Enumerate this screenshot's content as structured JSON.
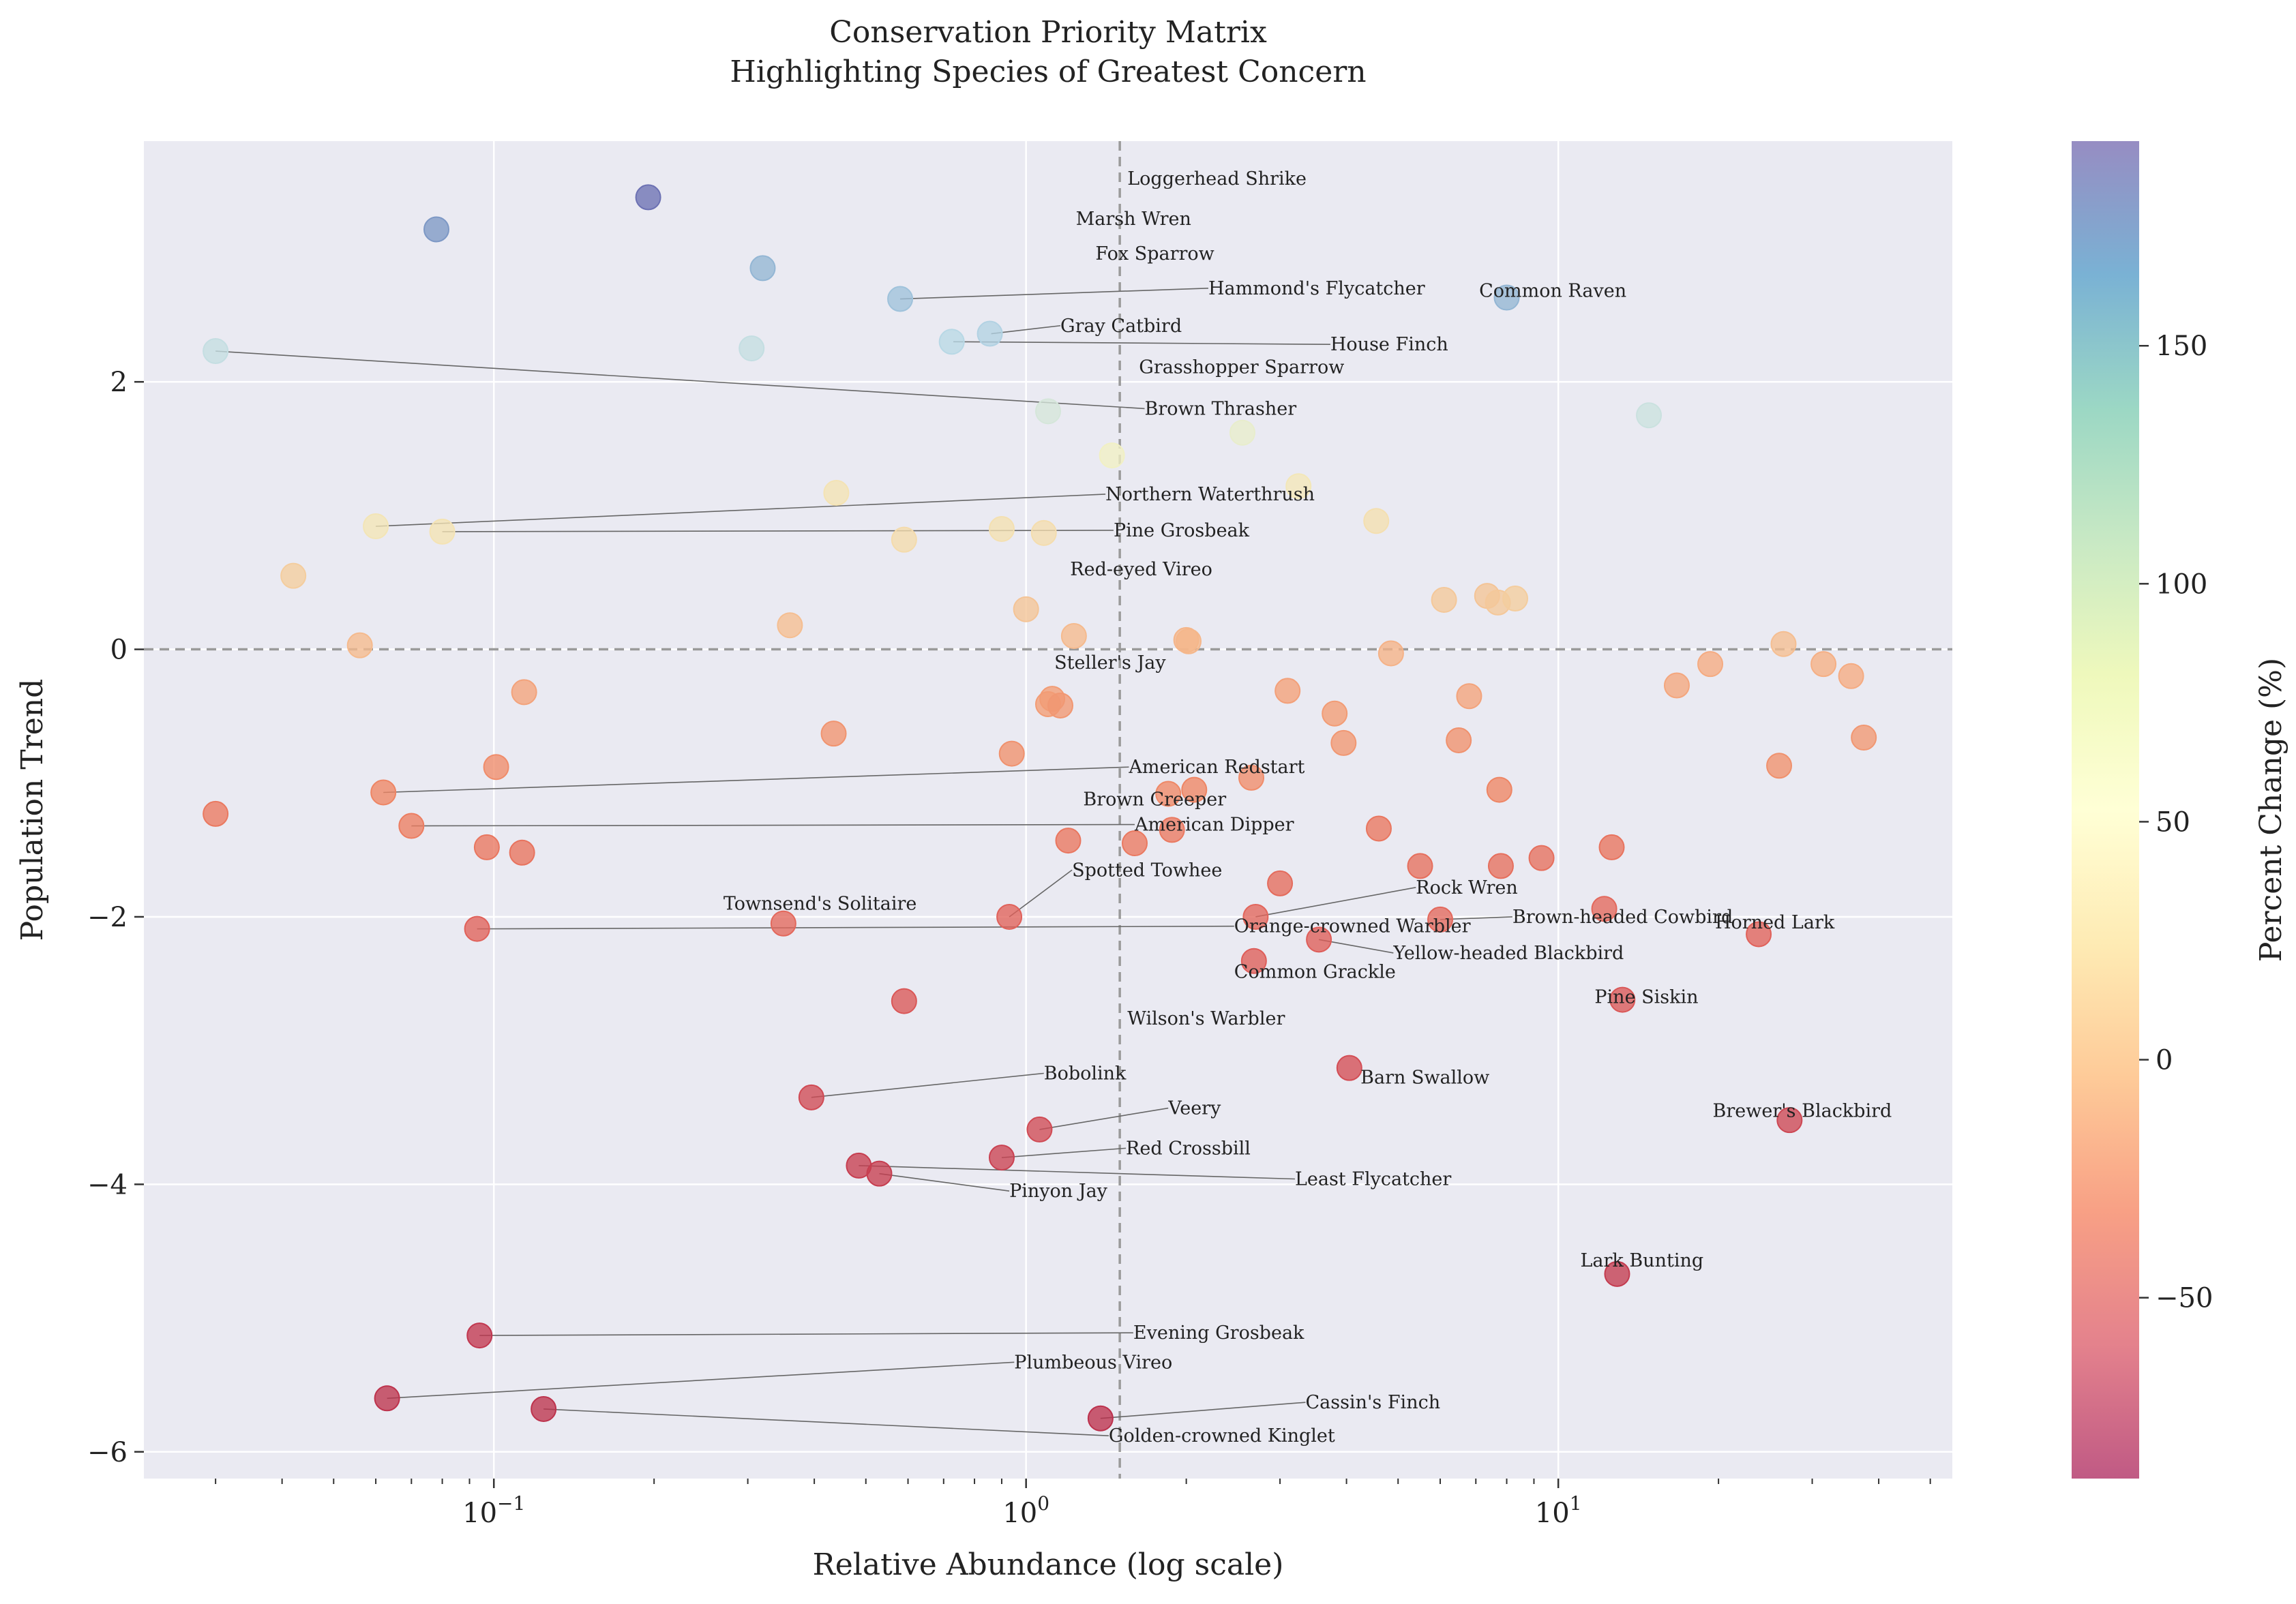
{
  "chart_data": {
    "type": "scatter",
    "title_line1": "Conservation Priority Matrix",
    "title_line2": "Highlighting Species of Greatest Concern",
    "xlabel": "Relative Abundance (log scale)",
    "ylabel": "Population Trend",
    "colorbar_label": "Percent Change (%)",
    "x_scale": "log",
    "xlim": [
      0.022,
      55
    ],
    "ylim": [
      -6.2,
      3.8
    ],
    "x_ticks": [
      {
        "value": 0.1,
        "base": "10",
        "exp": "−1"
      },
      {
        "value": 1,
        "base": "10",
        "exp": "0"
      },
      {
        "value": 10,
        "base": "10",
        "exp": "1"
      }
    ],
    "y_ticks": [
      {
        "value": 2,
        "label": "2"
      },
      {
        "value": 0,
        "label": "0"
      },
      {
        "value": -2,
        "label": "−2"
      },
      {
        "value": -4,
        "label": "−4"
      },
      {
        "value": -6,
        "label": "−6"
      }
    ],
    "colorbar_range": [
      -88,
      193
    ],
    "colorbar_ticks": [
      {
        "value": 150,
        "label": "150"
      },
      {
        "value": 100,
        "label": "100"
      },
      {
        "value": 50,
        "label": "50"
      },
      {
        "value": 0,
        "label": "0"
      },
      {
        "value": -50,
        "label": "−50"
      }
    ],
    "colormap": [
      "#9e0142",
      "#d53e4f",
      "#f46d43",
      "#fdae61",
      "#fee08b",
      "#ffffbf",
      "#e6f598",
      "#abdda4",
      "#66c2a5",
      "#3288bd",
      "#5e4fa2"
    ],
    "colormap_display": [
      "#b92e4c",
      "#dd5a58",
      "#ee8262",
      "#f5ad82",
      "#f4d6a6",
      "#f3f1c2",
      "#dae9d8",
      "#bad9e6",
      "#97bbd7",
      "#7891c1",
      "#6b6db1"
    ],
    "grid": true,
    "threshold_x": 1.5,
    "threshold_y": 0,
    "points": [
      {
        "x": 0.195,
        "y": 3.38,
        "c": 190
      },
      {
        "x": 0.078,
        "y": 3.14,
        "c": 160
      },
      {
        "x": 0.32,
        "y": 2.85,
        "c": 140
      },
      {
        "x": 0.58,
        "y": 2.62,
        "c": 130
      },
      {
        "x": 8.0,
        "y": 2.63,
        "c": 140
      },
      {
        "x": 0.03,
        "y": 2.23,
        "c": 100
      },
      {
        "x": 0.305,
        "y": 2.25,
        "c": 100
      },
      {
        "x": 0.725,
        "y": 2.3,
        "c": 110
      },
      {
        "x": 0.855,
        "y": 2.36,
        "c": 115
      },
      {
        "x": 1.1,
        "y": 1.78,
        "c": 85
      },
      {
        "x": 2.55,
        "y": 1.62,
        "c": 65
      },
      {
        "x": 14.8,
        "y": 1.75,
        "c": 95
      },
      {
        "x": 1.45,
        "y": 1.45,
        "c": 55
      },
      {
        "x": 3.25,
        "y": 1.22,
        "c": 42
      },
      {
        "x": 0.44,
        "y": 1.17,
        "c": 38
      },
      {
        "x": 0.06,
        "y": 0.92,
        "c": 40
      },
      {
        "x": 0.08,
        "y": 0.88,
        "c": 38
      },
      {
        "x": 0.9,
        "y": 0.9,
        "c": 35
      },
      {
        "x": 1.08,
        "y": 0.87,
        "c": 32
      },
      {
        "x": 0.59,
        "y": 0.82,
        "c": 30
      },
      {
        "x": 4.55,
        "y": 0.96,
        "c": 34
      },
      {
        "x": 0.042,
        "y": 0.55,
        "c": 18
      },
      {
        "x": 6.1,
        "y": 0.37,
        "c": 15
      },
      {
        "x": 7.35,
        "y": 0.4,
        "c": 12
      },
      {
        "x": 7.7,
        "y": 0.35,
        "c": 15
      },
      {
        "x": 8.3,
        "y": 0.38,
        "c": 18
      },
      {
        "x": 1.0,
        "y": 0.3,
        "c": 12
      },
      {
        "x": 0.36,
        "y": 0.18,
        "c": 8
      },
      {
        "x": 1.23,
        "y": 0.1,
        "c": 5
      },
      {
        "x": 2.0,
        "y": 0.07,
        "c": 2
      },
      {
        "x": 2.02,
        "y": 0.06,
        "c": 3
      },
      {
        "x": 0.056,
        "y": 0.03,
        "c": 5
      },
      {
        "x": 26.5,
        "y": 0.04,
        "c": 8
      },
      {
        "x": 4.85,
        "y": -0.03,
        "c": 0
      },
      {
        "x": 31.5,
        "y": -0.11,
        "c": -2
      },
      {
        "x": 19.3,
        "y": -0.11,
        "c": -5
      },
      {
        "x": 35.5,
        "y": -0.2,
        "c": -5
      },
      {
        "x": 16.7,
        "y": -0.27,
        "c": -8
      },
      {
        "x": 0.114,
        "y": -0.32,
        "c": -10
      },
      {
        "x": 3.1,
        "y": -0.31,
        "c": -12
      },
      {
        "x": 6.8,
        "y": -0.35,
        "c": -10
      },
      {
        "x": 1.12,
        "y": -0.37,
        "c": -15
      },
      {
        "x": 1.1,
        "y": -0.41,
        "c": -15
      },
      {
        "x": 1.16,
        "y": -0.42,
        "c": -18
      },
      {
        "x": 3.8,
        "y": -0.48,
        "c": -15
      },
      {
        "x": 0.435,
        "y": -0.63,
        "c": -20
      },
      {
        "x": 3.95,
        "y": -0.7,
        "c": -18
      },
      {
        "x": 6.5,
        "y": -0.68,
        "c": -22
      },
      {
        "x": 37.5,
        "y": -0.66,
        "c": -18
      },
      {
        "x": 0.94,
        "y": -0.78,
        "c": -22
      },
      {
        "x": 26.0,
        "y": -0.87,
        "c": -22
      },
      {
        "x": 0.101,
        "y": -0.88,
        "c": -25
      },
      {
        "x": 2.65,
        "y": -0.96,
        "c": -25
      },
      {
        "x": 0.062,
        "y": -1.07,
        "c": -30
      },
      {
        "x": 1.85,
        "y": -1.08,
        "c": -28
      },
      {
        "x": 2.07,
        "y": -1.05,
        "c": -30
      },
      {
        "x": 7.75,
        "y": -1.05,
        "c": -30
      },
      {
        "x": 0.03,
        "y": -1.23,
        "c": -38
      },
      {
        "x": 0.07,
        "y": -1.32,
        "c": -35
      },
      {
        "x": 1.88,
        "y": -1.35,
        "c": -38
      },
      {
        "x": 4.6,
        "y": -1.34,
        "c": -40
      },
      {
        "x": 1.2,
        "y": -1.43,
        "c": -40
      },
      {
        "x": 1.6,
        "y": -1.45,
        "c": -38
      },
      {
        "x": 0.097,
        "y": -1.48,
        "c": -40
      },
      {
        "x": 12.6,
        "y": -1.48,
        "c": -42
      },
      {
        "x": 0.113,
        "y": -1.52,
        "c": -42
      },
      {
        "x": 9.3,
        "y": -1.56,
        "c": -45
      },
      {
        "x": 5.5,
        "y": -1.62,
        "c": -45
      },
      {
        "x": 7.8,
        "y": -1.62,
        "c": -45
      },
      {
        "x": 3.0,
        "y": -1.75,
        "c": -48
      },
      {
        "x": 12.2,
        "y": -1.94,
        "c": -50
      },
      {
        "x": 0.93,
        "y": -2.0,
        "c": -55
      },
      {
        "x": 2.7,
        "y": -2.0,
        "c": -52
      },
      {
        "x": 6.0,
        "y": -2.02,
        "c": -50
      },
      {
        "x": 0.35,
        "y": -2.05,
        "c": -50
      },
      {
        "x": 0.093,
        "y": -2.09,
        "c": -55
      },
      {
        "x": 23.8,
        "y": -2.13,
        "c": -55
      },
      {
        "x": 3.55,
        "y": -2.17,
        "c": -58
      },
      {
        "x": 2.68,
        "y": -2.33,
        "c": -58
      },
      {
        "x": 13.2,
        "y": -2.62,
        "c": -62
      },
      {
        "x": 0.59,
        "y": -2.63,
        "c": -62
      },
      {
        "x": 4.05,
        "y": -3.13,
        "c": -68
      },
      {
        "x": 0.395,
        "y": -3.35,
        "c": -70
      },
      {
        "x": 27.2,
        "y": -3.52,
        "c": -72
      },
      {
        "x": 1.06,
        "y": -3.59,
        "c": -70
      },
      {
        "x": 0.9,
        "y": -3.8,
        "c": -75
      },
      {
        "x": 0.485,
        "y": -3.86,
        "c": -78
      },
      {
        "x": 0.53,
        "y": -3.92,
        "c": -78
      },
      {
        "x": 12.9,
        "y": -4.67,
        "c": -80
      },
      {
        "x": 0.094,
        "y": -5.13,
        "c": -82
      },
      {
        "x": 0.063,
        "y": -5.6,
        "c": -85
      },
      {
        "x": 0.124,
        "y": -5.68,
        "c": -85
      },
      {
        "x": 1.38,
        "y": -5.75,
        "c": -86
      }
    ],
    "annotations": [
      {
        "text": "Loggerhead Shrike",
        "x": 1.55,
        "y": 3.52
      },
      {
        "text": "Marsh Wren",
        "x": 1.24,
        "y": 3.22
      },
      {
        "text": "Fox Sparrow",
        "x": 1.35,
        "y": 2.96
      },
      {
        "text": "Hammond's Flycatcher",
        "x": 2.2,
        "y": 2.7,
        "px": 0.58,
        "py": 2.62
      },
      {
        "text": "Common Raven",
        "x": 7.1,
        "y": 2.68
      },
      {
        "text": "Gray Catbird",
        "x": 1.16,
        "y": 2.42,
        "px": 0.86,
        "py": 2.36
      },
      {
        "text": "House Finch",
        "x": 3.73,
        "y": 2.28,
        "px": 0.73,
        "py": 2.3
      },
      {
        "text": "Grasshopper Sparrow",
        "x": 1.63,
        "y": 2.11
      },
      {
        "text": "Brown Thrasher",
        "x": 1.67,
        "y": 1.8,
        "px": 0.03,
        "py": 2.23
      },
      {
        "text": "Northern Waterthrush",
        "x": 1.41,
        "y": 1.16,
        "px": 0.06,
        "py": 0.92
      },
      {
        "text": "Pine Grosbeak",
        "x": 1.46,
        "y": 0.89,
        "px": 0.08,
        "py": 0.88
      },
      {
        "text": "Red-eyed Vireo",
        "x": 1.21,
        "y": 0.6
      },
      {
        "text": "Steller's Jay",
        "x": 1.13,
        "y": -0.1
      },
      {
        "text": "American Redstart",
        "x": 1.56,
        "y": -0.88,
        "px": 0.062,
        "py": -1.07
      },
      {
        "text": "Brown Creeper",
        "x": 1.28,
        "y": -1.12
      },
      {
        "text": "American Dipper",
        "x": 1.6,
        "y": -1.31,
        "px": 0.07,
        "py": -1.32
      },
      {
        "text": "Spotted Towhee",
        "x": 1.22,
        "y": -1.65,
        "px": 0.93,
        "py": -2.0
      },
      {
        "text": "Rock Wren",
        "x": 5.4,
        "y": -1.78,
        "px": 2.7,
        "py": -2.0
      },
      {
        "text": "Townsend's Solitaire",
        "x": 0.27,
        "y": -1.9
      },
      {
        "text": "Orange-crowned Warbler",
        "x": 2.46,
        "y": -2.07,
        "px": 0.093,
        "py": -2.09
      },
      {
        "text": "Brown-headed Cowbird",
        "x": 8.2,
        "y": -2.0,
        "px": 6.0,
        "py": -2.02
      },
      {
        "text": "Horned Lark",
        "x": 19.7,
        "y": -2.04
      },
      {
        "text": "Yellow-headed Blackbird",
        "x": 4.9,
        "y": -2.27,
        "px": 3.55,
        "py": -2.17
      },
      {
        "text": "Common Grackle",
        "x": 2.46,
        "y": -2.41
      },
      {
        "text": "Pine Siskin",
        "x": 11.7,
        "y": -2.6
      },
      {
        "text": "Wilson's Warbler",
        "x": 1.55,
        "y": -2.76
      },
      {
        "text": "Bobolink",
        "x": 1.08,
        "y": -3.17,
        "px": 0.395,
        "py": -3.35
      },
      {
        "text": "Barn Swallow",
        "x": 4.25,
        "y": -3.2
      },
      {
        "text": "Veery",
        "x": 1.85,
        "y": -3.43,
        "px": 1.06,
        "py": -3.59
      },
      {
        "text": "Brewer's Blackbird",
        "x": 19.5,
        "y": -3.45
      },
      {
        "text": "Red Crossbill",
        "x": 1.54,
        "y": -3.73,
        "px": 0.9,
        "py": -3.8
      },
      {
        "text": "Least Flycatcher",
        "x": 3.2,
        "y": -3.96,
        "px": 0.485,
        "py": -3.86
      },
      {
        "text": "Pinyon Jay",
        "x": 0.93,
        "y": -4.05,
        "px": 0.53,
        "py": -3.92
      },
      {
        "text": "Lark Bunting",
        "x": 11.0,
        "y": -4.57
      },
      {
        "text": "Evening Grosbeak",
        "x": 1.59,
        "y": -5.11,
        "px": 0.094,
        "py": -5.13
      },
      {
        "text": "Plumbeous Vireo",
        "x": 0.95,
        "y": -5.33,
        "px": 0.063,
        "py": -5.6
      },
      {
        "text": "Cassin's Finch",
        "x": 3.35,
        "y": -5.63,
        "px": 1.38,
        "py": -5.75
      },
      {
        "text": "Golden-crowned Kinglet",
        "x": 1.43,
        "y": -5.88,
        "px": 0.124,
        "py": -5.68
      }
    ]
  }
}
